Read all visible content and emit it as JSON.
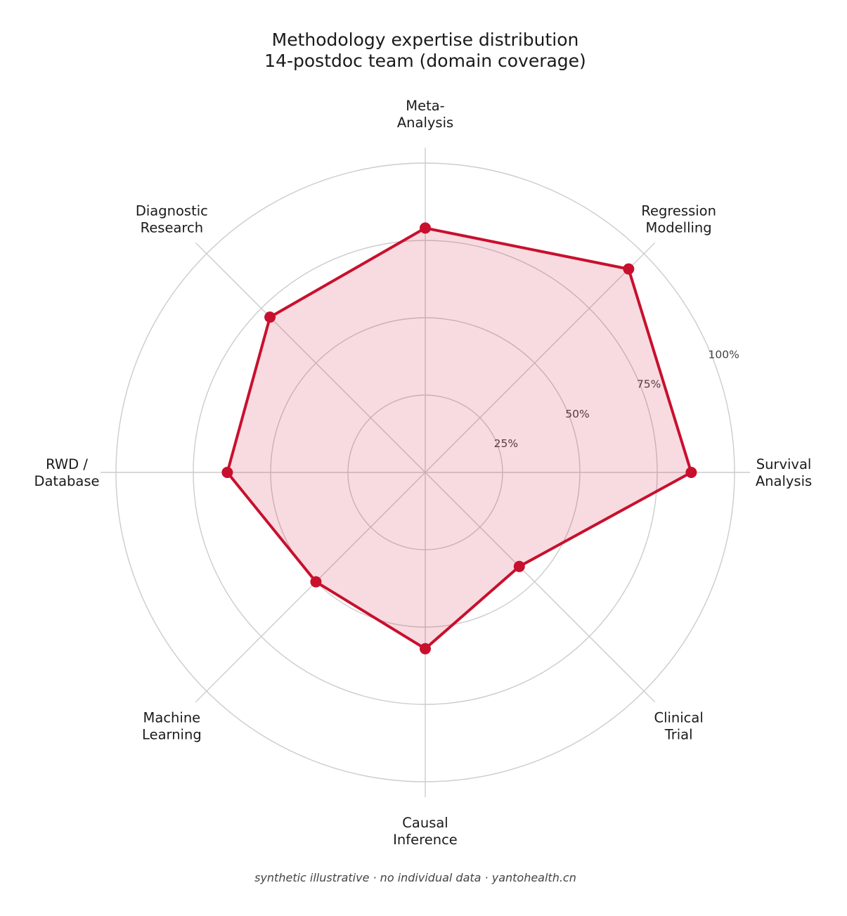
{
  "chart_data": {
    "type": "radar",
    "title": [
      "Methodology expertise distribution",
      "14-postdoc team  (domain coverage)"
    ],
    "axes": [
      {
        "label": [
          "Survival",
          "Analysis"
        ],
        "value": 86
      },
      {
        "label": [
          "Regression",
          "Modelling"
        ],
        "value": 93
      },
      {
        "label": [
          "Meta-",
          "Analysis"
        ],
        "value": 79
      },
      {
        "label": [
          "Diagnostic",
          "Research"
        ],
        "value": 71
      },
      {
        "label": [
          "RWD /",
          "Database"
        ],
        "value": 64
      },
      {
        "label": [
          "Machine",
          "Learning"
        ],
        "value": 50
      },
      {
        "label": [
          "Causal",
          "Inference"
        ],
        "value": 57
      },
      {
        "label": [
          "Clinical",
          "Trial"
        ],
        "value": 43
      }
    ],
    "rlim": [
      0,
      100
    ],
    "ticks": [
      25,
      50,
      75,
      100
    ],
    "tick_labels": [
      "25%",
      "50%",
      "75%",
      "100%"
    ],
    "grid": true,
    "colors": {
      "line": "#c8102e",
      "fill": "#c8102e",
      "grid": "#cccccc"
    },
    "footer": "synthetic illustrative · no individual data · yantohealth.cn"
  }
}
